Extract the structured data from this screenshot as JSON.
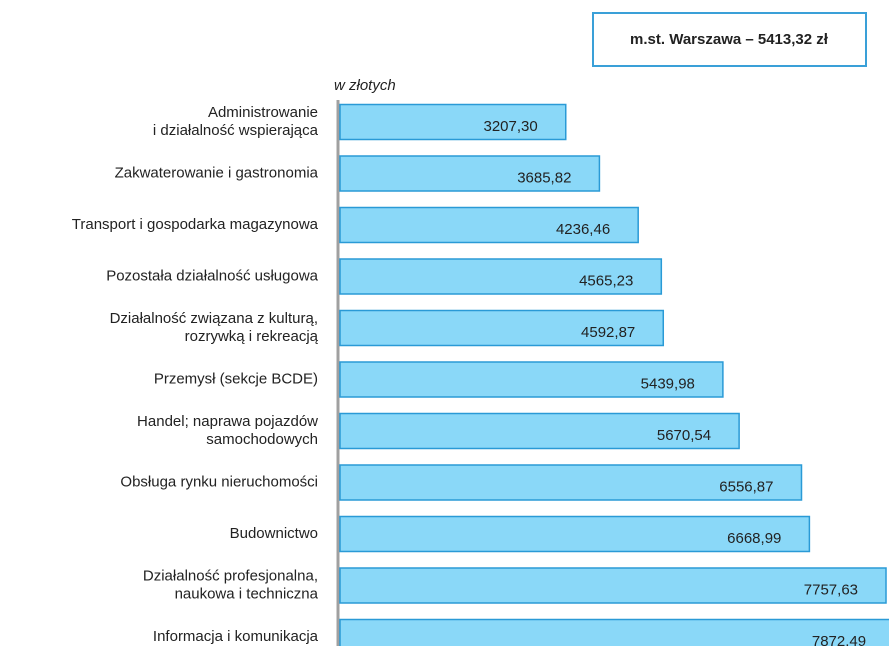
{
  "chart_data": {
    "type": "bar",
    "orientation": "horizontal",
    "title": "m.st. Warszawa – 5413,32 zł",
    "subtitle": "w złotych",
    "categories": [
      "Administrowanie\ni działalność wspierająca",
      "Zakwaterowanie i gastronomia",
      "Transport i gospodarka magazynowa",
      "Pozostała działalność usługowa",
      "Działalność związana z kulturą,\nrozrywką i rekreacją",
      "Przemysł (sekcje BCDE)",
      "Handel; naprawa pojazdów\nsamochodowych",
      "Obsługa rynku nieruchomości",
      "Budownictwo",
      "Działalność profesjonalna,\nnaukowa i techniczna",
      "Informacja i komunikacja"
    ],
    "values": [
      3207.3,
      3685.82,
      4236.46,
      4565.23,
      4592.87,
      5439.98,
      5670.54,
      6556.87,
      6668.99,
      7757.63,
      7872.49
    ],
    "value_labels": [
      "3207,30",
      "3685,82",
      "4236,46",
      "4565,23",
      "4592,87",
      "5439,98",
      "5670,54",
      "6556,87",
      "6668,99",
      "7757,63",
      "7872,49"
    ],
    "color": "#8ad8f8",
    "xlim": [
      0,
      7800
    ]
  }
}
